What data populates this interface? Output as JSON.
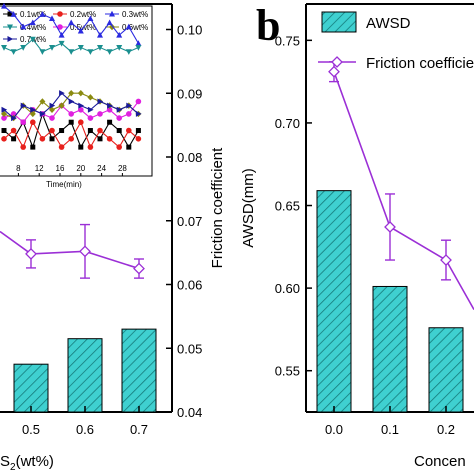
{
  "chart_data": [
    {
      "panel": "a",
      "type": "bar+line",
      "categories": [
        "0.5",
        "0.6",
        "0.7"
      ],
      "xlabel_visible": "S2(wt%)",
      "bars": {
        "values": [
          0.0475,
          0.0515,
          0.053
        ],
        "axis": "right"
      },
      "line": {
        "values": [
          0.0648,
          0.0652,
          0.0625
        ],
        "errors": [
          0.0022,
          0.0042,
          0.0015
        ],
        "partial_point": 0.068,
        "axis": "right"
      },
      "right_axis": {
        "label": "Friction coefficient",
        "ticks": [
          "0.04",
          "0.05",
          "0.06",
          "0.07",
          "0.08",
          "0.09",
          "0.10"
        ],
        "ylim": [
          0.04,
          0.104
        ]
      },
      "inset": {
        "type": "line",
        "xlabel": "Time(min)",
        "xticks": [
          "8",
          "12",
          "16",
          "20",
          "24",
          "28"
        ],
        "legend": [
          "0.1wt%",
          "0.2wt%",
          "0.3wt%",
          "0.4wt%",
          "0.5wt%",
          "0.6wt%",
          "0.7wt%"
        ],
        "colors": [
          "#000000",
          "#e8201c",
          "#2a2ae0",
          "#1a8f8f",
          "#e020e0",
          "#8a8a10",
          "#1a1a9a"
        ],
        "series": [
          {
            "name": "0.1wt%",
            "values": [
              0.084,
              0.083,
              0.085,
              0.082,
              0.086,
              0.083,
              0.084,
              0.085,
              0.082,
              0.084,
              0.083,
              0.085,
              0.084,
              0.082,
              0.084
            ]
          },
          {
            "name": "0.2wt%",
            "values": [
              0.083,
              0.084,
              0.082,
              0.085,
              0.083,
              0.084,
              0.082,
              0.083,
              0.085,
              0.082,
              0.084,
              0.083,
              0.082,
              0.084,
              0.083
            ]
          },
          {
            "name": "0.3wt%",
            "values": [
              0.099,
              0.098,
              0.0965,
              0.097,
              0.098,
              0.0975,
              0.0955,
              0.097,
              0.096,
              0.0975,
              0.0955,
              0.097,
              0.0955,
              0.0965,
              0.0945
            ]
          },
          {
            "name": "0.4wt%",
            "values": [
              0.094,
              0.0935,
              0.094,
              0.095,
              0.0935,
              0.094,
              0.0945,
              0.0935,
              0.094,
              0.0935,
              0.094,
              0.0935,
              0.094,
              0.0935,
              0.094
            ]
          },
          {
            "name": "0.5wt%",
            "values": [
              0.0855,
              0.086,
              0.085,
              0.0865,
              0.086,
              0.0855,
              0.087,
              0.086,
              0.0865,
              0.0855,
              0.086,
              0.0865,
              0.0855,
              0.086,
              0.0875
            ]
          },
          {
            "name": "0.6wt%",
            "values": [
              0.086,
              0.0855,
              0.087,
              0.086,
              0.0875,
              0.0865,
              0.087,
              0.0885,
              0.0885,
              0.088,
              0.0875,
              0.087,
              0.0865,
              0.087,
              0.086
            ]
          },
          {
            "name": "0.7wt%",
            "values": [
              0.0865,
              0.0855,
              0.087,
              0.0865,
              0.086,
              0.087,
              0.0885,
              0.0875,
              0.087,
              0.0865,
              0.0875,
              0.087,
              0.0865,
              0.087,
              0.086
            ]
          }
        ]
      }
    },
    {
      "panel": "b",
      "type": "bar+line",
      "categories": [
        "0.0",
        "0.1",
        "0.2"
      ],
      "xlabel_visible": "Concen",
      "legend": [
        "AWSD",
        "Friction coefficie"
      ],
      "bars": {
        "name": "AWSD",
        "values": [
          0.659,
          0.601,
          0.576
        ]
      },
      "line": {
        "name": "Friction coefficient",
        "values": [
          0.731,
          0.637,
          0.617
        ],
        "errors": [
          0.006,
          0.02,
          0.012
        ]
      },
      "left_axis": {
        "label": "AWSD(mm)",
        "ticks": [
          "0.55",
          "0.60",
          "0.65",
          "0.70",
          "0.75"
        ],
        "ylim": [
          0.525,
          0.772
        ]
      }
    }
  ],
  "labels": {
    "panel_b": "b"
  },
  "colors": {
    "bar_fill": "#3fd0d0",
    "line": "#9b2fd6",
    "axis": "#000000"
  }
}
